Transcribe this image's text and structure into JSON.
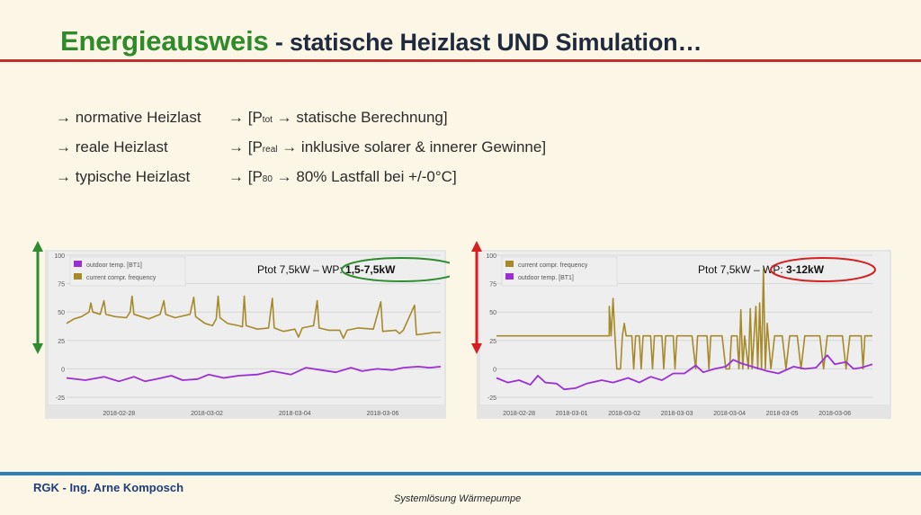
{
  "title": {
    "main": "Energieausweis",
    "rest": " - statische Heizlast UND Simulation…"
  },
  "bullets": [
    {
      "left": "→ normative Heizlast",
      "right_pre": "→ [P",
      "sub": "tot",
      "right_post": " → statische Berechnung]"
    },
    {
      "left": "→ reale Heizlast",
      "right_pre": "→ [P",
      "sub": "real",
      "right_post": " → inklusive solarer & innerer Gewinne]"
    },
    {
      "left": "→ typische Heizlast",
      "right_pre": "→ [P",
      "sub": "80",
      "right_post": " → 80% Lastfall bei +/-0°C]"
    }
  ],
  "colors": {
    "freq": "#a68a2a",
    "temp": "#9a2fd6",
    "green": "#2e8b2e",
    "red": "#d42020"
  },
  "chart_data": [
    {
      "type": "line",
      "annotation": {
        "pre": "Ptot 7,5kW  –  WP: ",
        "bold": "1,5-7,5kW"
      },
      "ylim": [
        -25,
        100
      ],
      "yticks": [
        -25,
        0,
        25,
        50,
        75,
        100
      ],
      "xticks": [
        "2018-02-28",
        "2018-03-02",
        "2018-03-04",
        "2018-03-06"
      ],
      "xtick_t": [
        0.14,
        0.375,
        0.61,
        0.845
      ],
      "legend": [
        "outdoor temp. [BT1]",
        "current compr. frequency"
      ],
      "series": [
        {
          "name": "current compr. frequency",
          "key": "freq",
          "points": [
            [
              0,
              40
            ],
            [
              0.02,
              44
            ],
            [
              0.04,
              46
            ],
            [
              0.06,
              50
            ],
            [
              0.065,
              58
            ],
            [
              0.07,
              50
            ],
            [
              0.09,
              48
            ],
            [
              0.1,
              60
            ],
            [
              0.105,
              48
            ],
            [
              0.13,
              46
            ],
            [
              0.16,
              45
            ],
            [
              0.17,
              50
            ],
            [
              0.175,
              64
            ],
            [
              0.18,
              48
            ],
            [
              0.22,
              44
            ],
            [
              0.25,
              48
            ],
            [
              0.26,
              60
            ],
            [
              0.265,
              48
            ],
            [
              0.29,
              45
            ],
            [
              0.33,
              48
            ],
            [
              0.34,
              63
            ],
            [
              0.345,
              46
            ],
            [
              0.37,
              40
            ],
            [
              0.39,
              38
            ],
            [
              0.4,
              44
            ],
            [
              0.405,
              64
            ],
            [
              0.41,
              45
            ],
            [
              0.43,
              40
            ],
            [
              0.46,
              38
            ],
            [
              0.47,
              37
            ],
            [
              0.475,
              64
            ],
            [
              0.48,
              38
            ],
            [
              0.51,
              35
            ],
            [
              0.54,
              36
            ],
            [
              0.55,
              62
            ],
            [
              0.555,
              36
            ],
            [
              0.58,
              33
            ],
            [
              0.61,
              35
            ],
            [
              0.62,
              28
            ],
            [
              0.63,
              36
            ],
            [
              0.66,
              38
            ],
            [
              0.67,
              60
            ],
            [
              0.675,
              36
            ],
            [
              0.7,
              34
            ],
            [
              0.73,
              34
            ],
            [
              0.74,
              27
            ],
            [
              0.75,
              34
            ],
            [
              0.78,
              36
            ],
            [
              0.82,
              35
            ],
            [
              0.84,
              59
            ],
            [
              0.845,
              33
            ],
            [
              0.88,
              34
            ],
            [
              0.89,
              31
            ],
            [
              0.9,
              34
            ],
            [
              0.93,
              56
            ],
            [
              0.935,
              30
            ],
            [
              0.96,
              31
            ],
            [
              0.98,
              32
            ],
            [
              1.0,
              32
            ]
          ]
        },
        {
          "name": "outdoor temp. [BT1]",
          "key": "temp",
          "points": [
            [
              0,
              -8
            ],
            [
              0.05,
              -10
            ],
            [
              0.1,
              -7
            ],
            [
              0.14,
              -11
            ],
            [
              0.18,
              -7
            ],
            [
              0.21,
              -11
            ],
            [
              0.24,
              -9
            ],
            [
              0.28,
              -6
            ],
            [
              0.31,
              -10
            ],
            [
              0.35,
              -9
            ],
            [
              0.38,
              -5
            ],
            [
              0.42,
              -8
            ],
            [
              0.46,
              -6
            ],
            [
              0.51,
              -5
            ],
            [
              0.55,
              -2
            ],
            [
              0.6,
              -5
            ],
            [
              0.64,
              1
            ],
            [
              0.68,
              -1
            ],
            [
              0.72,
              -3
            ],
            [
              0.76,
              1
            ],
            [
              0.79,
              -2
            ],
            [
              0.83,
              0
            ],
            [
              0.87,
              -1
            ],
            [
              0.9,
              1
            ],
            [
              0.94,
              2
            ],
            [
              0.97,
              1
            ],
            [
              1.0,
              2
            ]
          ]
        }
      ]
    },
    {
      "type": "line",
      "annotation": {
        "pre": "Ptot 7,5kW  –  WP: ",
        "bold": "3-12kW"
      },
      "ylim": [
        -25,
        100
      ],
      "yticks": [
        -25,
        0,
        25,
        50,
        75,
        100
      ],
      "xticks": [
        "2018-02-28",
        "2018-03-01",
        "2018-03-02",
        "2018-03-03",
        "2018-03-04",
        "2018-03-05",
        "2018-03-06"
      ],
      "xtick_t": [
        0.06,
        0.2,
        0.34,
        0.48,
        0.62,
        0.76,
        0.9
      ],
      "legend": [
        "current compr. frequency",
        "outdoor temp. [BT1]"
      ],
      "series": [
        {
          "name": "current compr. frequency",
          "key": "freq",
          "points": [
            [
              0,
              29
            ],
            [
              0.3,
              29
            ],
            [
              0.3,
              55
            ],
            [
              0.305,
              29
            ],
            [
              0.31,
              62
            ],
            [
              0.315,
              29
            ],
            [
              0.32,
              0
            ],
            [
              0.33,
              0
            ],
            [
              0.335,
              29
            ],
            [
              0.34,
              40
            ],
            [
              0.345,
              29
            ],
            [
              0.36,
              29
            ],
            [
              0.365,
              0
            ],
            [
              0.37,
              29
            ],
            [
              0.38,
              29
            ],
            [
              0.385,
              0
            ],
            [
              0.39,
              29
            ],
            [
              0.41,
              29
            ],
            [
              0.415,
              0
            ],
            [
              0.42,
              29
            ],
            [
              0.44,
              29
            ],
            [
              0.445,
              0
            ],
            [
              0.45,
              29
            ],
            [
              0.47,
              29
            ],
            [
              0.475,
              0
            ],
            [
              0.48,
              29
            ],
            [
              0.5,
              29
            ],
            [
              0.52,
              29
            ],
            [
              0.53,
              0
            ],
            [
              0.535,
              29
            ],
            [
              0.56,
              29
            ],
            [
              0.565,
              0
            ],
            [
              0.57,
              29
            ],
            [
              0.6,
              29
            ],
            [
              0.61,
              0
            ],
            [
              0.62,
              0
            ],
            [
              0.625,
              29
            ],
            [
              0.64,
              29
            ],
            [
              0.645,
              0
            ],
            [
              0.65,
              52
            ],
            [
              0.655,
              0
            ],
            [
              0.66,
              29
            ],
            [
              0.67,
              0
            ],
            [
              0.675,
              53
            ],
            [
              0.68,
              0
            ],
            [
              0.69,
              55
            ],
            [
              0.695,
              0
            ],
            [
              0.7,
              58
            ],
            [
              0.705,
              0
            ],
            [
              0.71,
              88
            ],
            [
              0.715,
              0
            ],
            [
              0.72,
              40
            ],
            [
              0.73,
              0
            ],
            [
              0.74,
              29
            ],
            [
              0.76,
              29
            ],
            [
              0.77,
              0
            ],
            [
              0.78,
              29
            ],
            [
              0.8,
              29
            ],
            [
              0.81,
              0
            ],
            [
              0.82,
              29
            ],
            [
              0.86,
              29
            ],
            [
              0.87,
              0
            ],
            [
              0.88,
              29
            ],
            [
              0.92,
              29
            ],
            [
              0.93,
              0
            ],
            [
              0.94,
              29
            ],
            [
              0.97,
              29
            ],
            [
              0.975,
              0
            ],
            [
              0.98,
              29
            ],
            [
              1.0,
              29
            ]
          ]
        },
        {
          "name": "outdoor temp. [BT1]",
          "key": "temp",
          "points": [
            [
              0,
              -8
            ],
            [
              0.03,
              -12
            ],
            [
              0.06,
              -10
            ],
            [
              0.09,
              -14
            ],
            [
              0.11,
              -6
            ],
            [
              0.13,
              -12
            ],
            [
              0.16,
              -13
            ],
            [
              0.18,
              -18
            ],
            [
              0.21,
              -17
            ],
            [
              0.24,
              -13
            ],
            [
              0.28,
              -10
            ],
            [
              0.31,
              -12
            ],
            [
              0.35,
              -8
            ],
            [
              0.38,
              -12
            ],
            [
              0.41,
              -7
            ],
            [
              0.44,
              -10
            ],
            [
              0.47,
              -4
            ],
            [
              0.5,
              -4
            ],
            [
              0.53,
              3
            ],
            [
              0.55,
              -3
            ],
            [
              0.58,
              0
            ],
            [
              0.61,
              2
            ],
            [
              0.63,
              8
            ],
            [
              0.65,
              5
            ],
            [
              0.68,
              2
            ],
            [
              0.7,
              0
            ],
            [
              0.72,
              -2
            ],
            [
              0.75,
              -4
            ],
            [
              0.79,
              2
            ],
            [
              0.82,
              0
            ],
            [
              0.85,
              1
            ],
            [
              0.88,
              12
            ],
            [
              0.9,
              4
            ],
            [
              0.93,
              6
            ],
            [
              0.95,
              0
            ],
            [
              0.97,
              1
            ],
            [
              1.0,
              4
            ]
          ]
        }
      ]
    }
  ],
  "footer": {
    "left": "RGK - Ing. Arne Komposch",
    "center": "Systemlösung Wärmepumpe"
  }
}
